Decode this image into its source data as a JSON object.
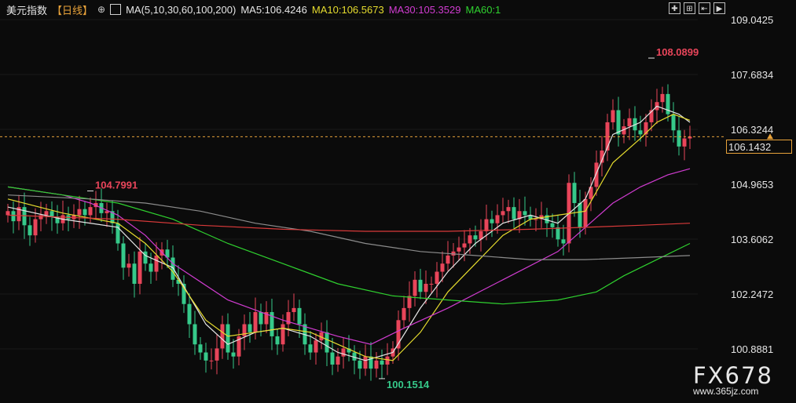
{
  "header": {
    "title": "美元指数",
    "period": "【日线】",
    "settings_icon": "gear-icon",
    "ma_label": "MA(5,10,30,60,100,200)",
    "ma5": "MA5:106.4246",
    "ma10": "MA10:106.5673",
    "ma30": "MA30:105.3529",
    "ma60": "MA60:1"
  },
  "toolbar": {
    "icons": [
      "crosshair-icon",
      "zoom-icon",
      "step-back-icon",
      "play-icon"
    ],
    "glyphs": [
      "✚",
      "⊞",
      "⇤",
      "▶"
    ]
  },
  "chart_data": {
    "type": "candlestick",
    "title": "美元指数",
    "period": "日线",
    "ylim": [
      100.0,
      109.4
    ],
    "y_ticks": [
      109.0425,
      107.6834,
      106.3244,
      104.9653,
      103.6062,
      102.2472,
      100.8881
    ],
    "y_tick_labels": [
      "109.0425",
      "107.6834",
      "106.3244",
      "104.9653",
      "103.6062",
      "102.2472",
      "100.8881"
    ],
    "current_price": 106.1432,
    "current_price_label": "106.1432",
    "annotations": [
      {
        "label": "108.0899",
        "value": 108.0899,
        "bar": 117,
        "kind": "high"
      },
      {
        "label": "104.7991",
        "value": 104.7991,
        "bar": 15,
        "kind": "high"
      },
      {
        "label": "100.1514",
        "value": 100.1514,
        "bar": 68,
        "kind": "low"
      }
    ],
    "legend": [
      "MA5",
      "MA10",
      "MA30",
      "MA60",
      "MA100",
      "MA200"
    ],
    "colors": {
      "up": "#e8455a",
      "down": "#36c98a",
      "ma5": "#e6e6e6",
      "ma10": "#e6dc2e",
      "ma30": "#d13cd1",
      "ma60": "#2fd12f",
      "ma100": "#8c8c8c",
      "ma200": "#d93a3a",
      "price_line": "#e8a23a"
    },
    "candles_close": [
      104.3,
      104.05,
      104.4,
      103.95,
      103.7,
      104.1,
      104.2,
      104.3,
      104.15,
      104.0,
      104.2,
      104.1,
      104.2,
      104.35,
      104.2,
      104.4,
      104.5,
      104.25,
      104.3,
      104.0,
      103.5,
      102.9,
      103.0,
      102.5,
      103.3,
      103.0,
      102.8,
      103.2,
      103.35,
      103.15,
      102.6,
      102.5,
      102.0,
      101.5,
      101.0,
      100.8,
      100.6,
      100.6,
      100.9,
      101.5,
      100.8,
      100.7,
      101.2,
      101.5,
      101.3,
      101.8,
      101.5,
      101.8,
      101.2,
      101.0,
      101.5,
      101.8,
      101.9,
      101.5,
      101.0,
      100.8,
      101.1,
      101.3,
      100.8,
      100.5,
      100.7,
      100.9,
      100.8,
      100.6,
      100.4,
      100.7,
      100.4,
      100.6,
      100.5,
      100.7,
      100.9,
      101.6,
      101.9,
      102.2,
      102.6,
      102.3,
      102.5,
      102.5,
      102.8,
      103.0,
      103.2,
      103.3,
      103.4,
      103.5,
      103.7,
      103.6,
      103.8,
      104.1,
      104.0,
      104.2,
      104.3,
      104.4,
      104.1,
      104.3,
      104.2,
      104.1,
      104.1,
      104.2,
      104.0,
      103.9,
      103.6,
      103.5,
      105.0,
      104.5,
      103.9,
      104.6,
      104.9,
      105.5,
      105.8,
      106.5,
      106.8,
      106.2,
      106.4,
      106.6,
      106.3,
      106.2,
      106.5,
      106.8,
      107.0,
      107.2,
      106.7,
      106.3,
      105.9,
      106.1,
      106.1432
    ],
    "ma_values": {
      "ma5": [
        [
          0,
          104.4
        ],
        [
          10,
          104.1
        ],
        [
          20,
          103.9
        ],
        [
          25,
          103.2
        ],
        [
          30,
          102.9
        ],
        [
          36,
          101.5
        ],
        [
          40,
          101.0
        ],
        [
          45,
          101.3
        ],
        [
          50,
          101.4
        ],
        [
          55,
          101.2
        ],
        [
          60,
          100.8
        ],
        [
          65,
          100.6
        ],
        [
          70,
          100.8
        ],
        [
          75,
          101.9
        ],
        [
          80,
          102.8
        ],
        [
          85,
          103.5
        ],
        [
          90,
          104.0
        ],
        [
          95,
          104.2
        ],
        [
          100,
          104.0
        ],
        [
          105,
          104.6
        ],
        [
          110,
          106.2
        ],
        [
          115,
          106.5
        ],
        [
          118,
          106.9
        ],
        [
          122,
          106.7
        ],
        [
          124,
          106.5
        ]
      ],
      "ma10": [
        [
          0,
          104.6
        ],
        [
          10,
          104.25
        ],
        [
          20,
          104.0
        ],
        [
          25,
          103.5
        ],
        [
          30,
          102.8
        ],
        [
          36,
          101.6
        ],
        [
          40,
          101.2
        ],
        [
          45,
          101.3
        ],
        [
          50,
          101.4
        ],
        [
          55,
          101.3
        ],
        [
          60,
          101.0
        ],
        [
          65,
          100.7
        ],
        [
          70,
          100.6
        ],
        [
          75,
          101.3
        ],
        [
          80,
          102.3
        ],
        [
          85,
          103.0
        ],
        [
          90,
          103.7
        ],
        [
          95,
          104.1
        ],
        [
          100,
          104.2
        ],
        [
          105,
          104.3
        ],
        [
          110,
          105.5
        ],
        [
          115,
          106.1
        ],
        [
          118,
          106.5
        ],
        [
          121,
          106.7
        ],
        [
          124,
          106.55
        ]
      ],
      "ma30": [
        [
          0,
          104.9
        ],
        [
          10,
          104.7
        ],
        [
          15,
          104.5
        ],
        [
          20,
          104.2
        ],
        [
          25,
          103.7
        ],
        [
          30,
          103.0
        ],
        [
          40,
          102.1
        ],
        [
          50,
          101.6
        ],
        [
          60,
          101.2
        ],
        [
          66,
          101.0
        ],
        [
          72,
          101.4
        ],
        [
          80,
          101.9
        ],
        [
          90,
          102.6
        ],
        [
          100,
          103.3
        ],
        [
          105,
          103.9
        ],
        [
          110,
          104.5
        ],
        [
          115,
          104.9
        ],
        [
          120,
          105.2
        ],
        [
          124,
          105.35
        ]
      ],
      "ma60": [
        [
          0,
          104.9
        ],
        [
          10,
          104.7
        ],
        [
          20,
          104.5
        ],
        [
          30,
          104.1
        ],
        [
          40,
          103.5
        ],
        [
          50,
          103.0
        ],
        [
          60,
          102.5
        ],
        [
          70,
          102.2
        ],
        [
          80,
          102.1
        ],
        [
          90,
          102.0
        ],
        [
          100,
          102.1
        ],
        [
          107,
          102.3
        ],
        [
          112,
          102.7
        ],
        [
          118,
          103.1
        ],
        [
          124,
          103.5
        ]
      ],
      "ma100": [
        [
          0,
          104.7
        ],
        [
          15,
          104.6
        ],
        [
          25,
          104.5
        ],
        [
          35,
          104.3
        ],
        [
          45,
          104.0
        ],
        [
          55,
          103.8
        ],
        [
          65,
          103.5
        ],
        [
          75,
          103.3
        ],
        [
          85,
          103.2
        ],
        [
          95,
          103.1
        ],
        [
          105,
          103.1
        ],
        [
          115,
          103.15
        ],
        [
          124,
          103.2
        ]
      ],
      "ma200": [
        [
          0,
          104.2
        ],
        [
          20,
          104.1
        ],
        [
          35,
          103.95
        ],
        [
          50,
          103.85
        ],
        [
          65,
          103.8
        ],
        [
          80,
          103.8
        ],
        [
          95,
          103.85
        ],
        [
          105,
          103.9
        ],
        [
          115,
          103.95
        ],
        [
          124,
          104.0
        ]
      ]
    }
  },
  "watermark": {
    "brand": "FX678",
    "site": "www.365jz.com"
  }
}
